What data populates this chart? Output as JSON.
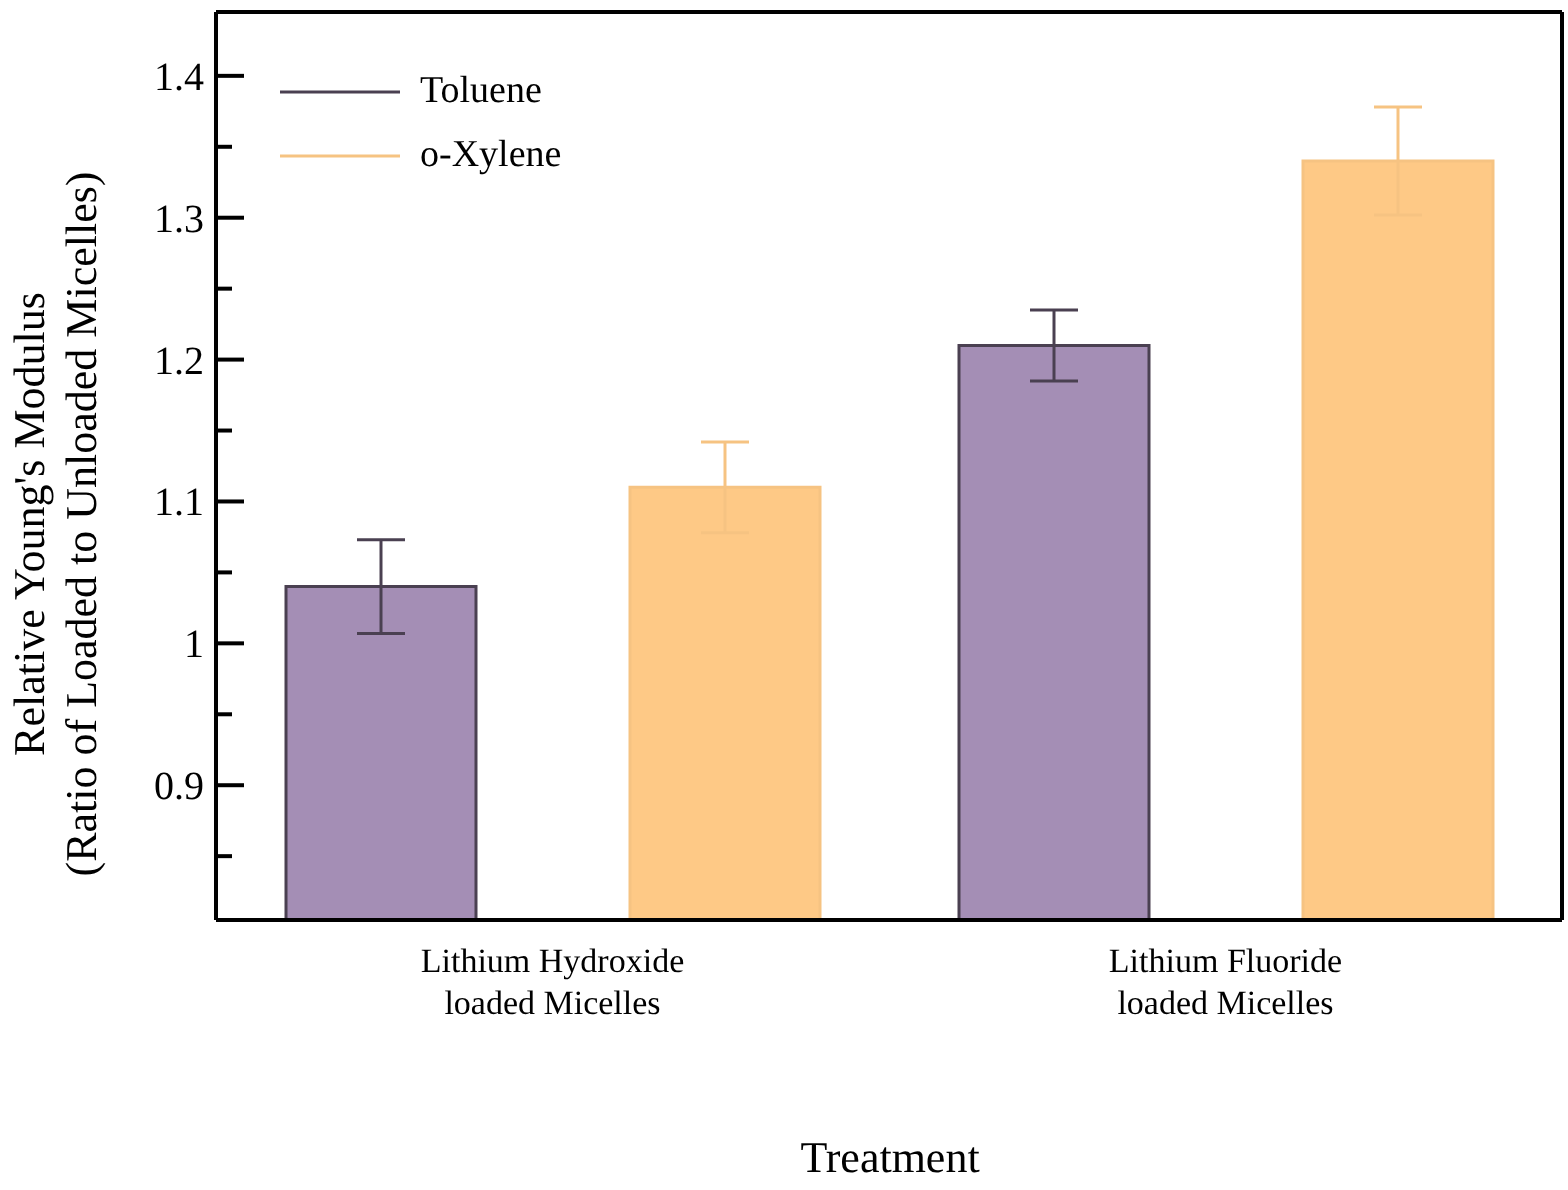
{
  "chart_data": {
    "type": "bar",
    "xlabel": "Treatment",
    "ylabel": "Relative Young's Modulus\n(Ratio of Loaded to Unloaded Micelles)",
    "categories": [
      "Lithium Hydroxide\nloaded Micelles",
      "Lithium Fluoride\nloaded Micelles"
    ],
    "series": [
      {
        "name": "Toluene",
        "color": "#a48eb5",
        "values": [
          1.04,
          1.21
        ],
        "errors": [
          0.033,
          0.025
        ]
      },
      {
        "name": "o-Xylene",
        "color": "#fec986",
        "values": [
          1.11,
          1.34
        ],
        "errors": [
          0.032,
          0.038
        ]
      }
    ],
    "ylim": [
      0.805,
      1.445
    ],
    "yticks": [
      {
        "value": 0.85,
        "label": null
      },
      0.9,
      {
        "value": 0.95,
        "label": null
      },
      1,
      {
        "value": 1.05,
        "label": null
      },
      1.1,
      {
        "value": 1.15,
        "label": null
      },
      1.2,
      {
        "value": 1.25,
        "label": null
      },
      1.3,
      {
        "value": 1.35,
        "label": null
      },
      1.4
    ],
    "grid": false,
    "legend": "top left"
  }
}
